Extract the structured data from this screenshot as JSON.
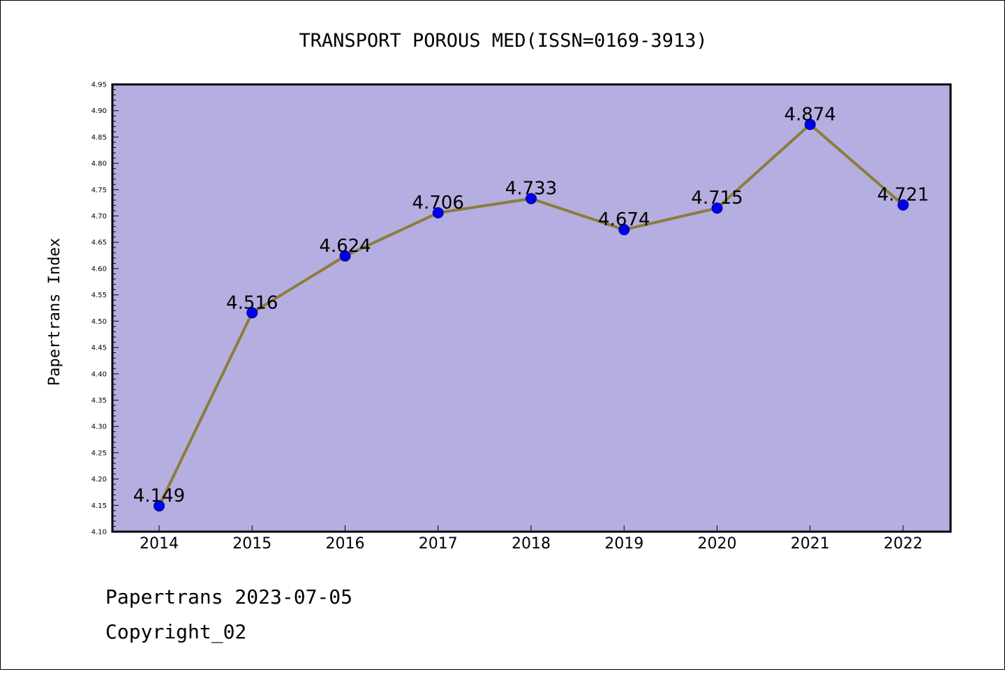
{
  "chart_data": {
    "type": "line",
    "title": "TRANSPORT POROUS MED(ISSN=0169-3913)",
    "xlabel": "",
    "ylabel": "Papertrans Index",
    "categories": [
      "2014",
      "2015",
      "2016",
      "2017",
      "2018",
      "2019",
      "2020",
      "2021",
      "2022"
    ],
    "values": [
      4.149,
      4.516,
      4.624,
      4.706,
      4.733,
      4.674,
      4.715,
      4.874,
      4.721
    ],
    "data_labels": [
      "4.149",
      "4.516",
      "4.624",
      "4.706",
      "4.733",
      "4.674",
      "4.715",
      "4.874",
      "4.721"
    ],
    "ylim": [
      4.1,
      4.95
    ],
    "yticks": [
      "4.10",
      "4.15",
      "4.20",
      "4.25",
      "4.30",
      "4.35",
      "4.40",
      "4.45",
      "4.50",
      "4.55",
      "4.60",
      "4.65",
      "4.70",
      "4.75",
      "4.80",
      "4.85",
      "4.90",
      "4.95"
    ],
    "grid": false,
    "legend": "none",
    "colors": {
      "plot_background": "#b4aee1",
      "line": "#8b7d3a",
      "marker_fill": "#0000ee",
      "marker_edge": "#00008b"
    }
  },
  "footer": {
    "line1": "Papertrans 2023-07-05",
    "line2": "Copyright_02"
  }
}
